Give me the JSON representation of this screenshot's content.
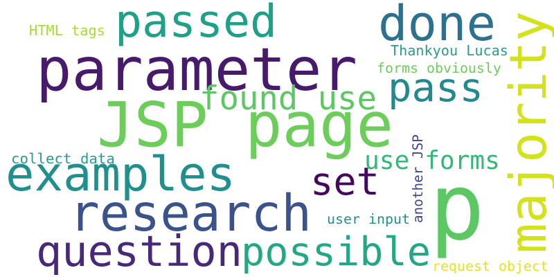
{
  "words": [
    {
      "text": "parameter",
      "color": "#481a6c"
    },
    {
      "text": "JSP page",
      "color": "#6ccd5a"
    },
    {
      "text": "p",
      "color": "#5cc863"
    },
    {
      "text": "majority",
      "color": "#d2e21b"
    },
    {
      "text": "done",
      "color": "#2c728e"
    },
    {
      "text": "examples",
      "color": "#21908d"
    },
    {
      "text": "research",
      "color": "#3b528b"
    },
    {
      "text": "question",
      "color": "#482878"
    },
    {
      "text": "possible",
      "color": "#22a884"
    },
    {
      "text": "passed",
      "color": "#1fa187"
    },
    {
      "text": "pass",
      "color": "#23898e"
    },
    {
      "text": "found use",
      "color": "#5cc863"
    },
    {
      "text": "set",
      "color": "#46085c"
    },
    {
      "text": "use forms",
      "color": "#35b779"
    },
    {
      "text": "Thankyou Lucas",
      "color": "#2a9c88"
    },
    {
      "text": "forms obviously",
      "color": "#6ccd5a"
    },
    {
      "text": "HTML tags",
      "color": "#a8db34"
    },
    {
      "text": "collect data",
      "color": "#2c9b8f"
    },
    {
      "text": "another JSP",
      "color": "#414487"
    },
    {
      "text": "user input",
      "color": "#21908d"
    },
    {
      "text": "request object",
      "color": "#e5e419"
    }
  ]
}
